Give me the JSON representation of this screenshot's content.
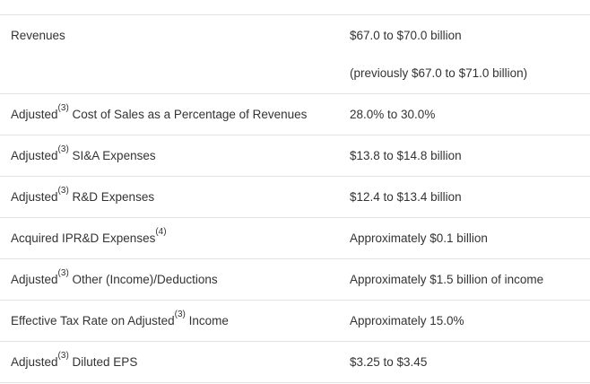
{
  "table": {
    "colors": {
      "text": "#333333",
      "border": "#e2e2e2",
      "background": "#ffffff"
    },
    "rows": [
      {
        "label_pre": "Revenues",
        "label_sup": "",
        "label_post": "",
        "value": "$67.0 to $70.0 billion",
        "value_secondary": "(previously $67.0 to $71.0 billion)"
      },
      {
        "label_pre": "Adjusted",
        "label_sup": "(3)",
        "label_post": " Cost of Sales as a Percentage of Revenues",
        "value": "28.0% to 30.0%"
      },
      {
        "label_pre": "Adjusted",
        "label_sup": "(3)",
        "label_post": " SI&A Expenses",
        "value": "$13.8 to $14.8 billion"
      },
      {
        "label_pre": "Adjusted",
        "label_sup": "(3)",
        "label_post": " R&D Expenses",
        "value": "$12.4 to $13.4 billion"
      },
      {
        "label_pre": "Acquired IPR&D Expenses",
        "label_sup": "(4)",
        "label_post": "",
        "value": "Approximately $0.1 billion"
      },
      {
        "label_pre": "Adjusted",
        "label_sup": "(3)",
        "label_post": " Other (Income)/Deductions",
        "value": "Approximately $1.5 billion of income"
      },
      {
        "label_pre": "Effective Tax Rate on Adjusted",
        "label_sup": "(3)",
        "label_post": " Income",
        "value": "Approximately 15.0%"
      },
      {
        "label_pre": "Adjusted",
        "label_sup": "(3)",
        "label_post": " Diluted EPS",
        "value": "$3.25 to $3.45"
      }
    ]
  }
}
